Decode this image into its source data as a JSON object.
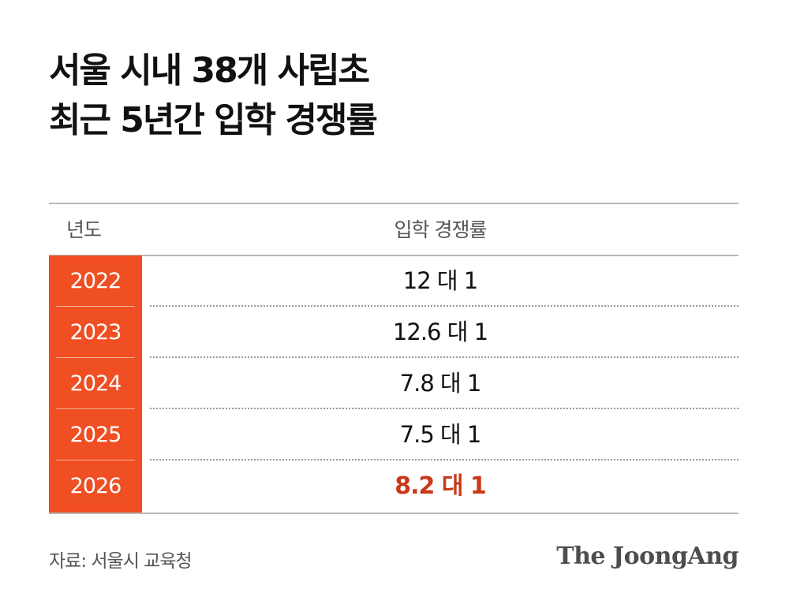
{
  "title": {
    "line1": "서울 시내 38개 사립초",
    "line2": "최근 5년간 입학 경쟁률"
  },
  "table": {
    "headers": {
      "year": "년도",
      "rate": "입학 경쟁률"
    },
    "rows": [
      {
        "year": "2022",
        "rate": "12 대 1"
      },
      {
        "year": "2023",
        "rate": "12.6 대 1"
      },
      {
        "year": "2024",
        "rate": "7.8 대 1"
      },
      {
        "year": "2025",
        "rate": "7.5 대 1"
      },
      {
        "year": "2026",
        "rate": "8.2 대 1",
        "highlight": true
      }
    ]
  },
  "source": "자료: 서울시 교육청",
  "logo": "The JoongAng",
  "colors": {
    "year_column": "#f04e23",
    "highlight_text": "#c8391a"
  },
  "chart_data": {
    "type": "table",
    "title": "서울 시내 38개 사립초 최근 5년간 입학 경쟁률",
    "columns": [
      "년도",
      "입학 경쟁률"
    ],
    "categories": [
      "2022",
      "2023",
      "2024",
      "2025",
      "2026"
    ],
    "series": [
      {
        "name": "입학 경쟁률",
        "values": [
          12,
          12.6,
          7.8,
          7.5,
          8.2
        ]
      }
    ],
    "highlighted_category": "2026",
    "source": "자료: 서울시 교육청"
  }
}
